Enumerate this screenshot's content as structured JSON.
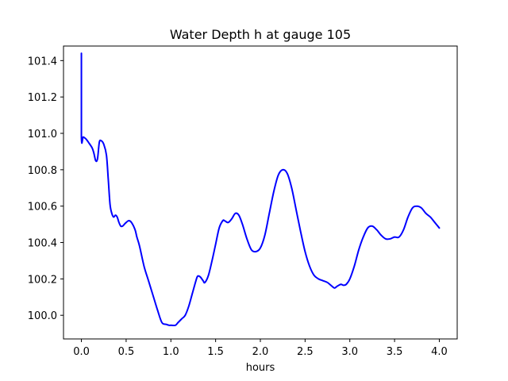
{
  "chart_data": {
    "type": "line",
    "title": "Water Depth h at gauge 105",
    "xlabel": "hours",
    "ylabel": "",
    "xlim": [
      -0.2,
      4.2
    ],
    "ylim": [
      99.87,
      101.48
    ],
    "xticks": [
      0.0,
      0.5,
      1.0,
      1.5,
      2.0,
      2.5,
      3.0,
      3.5,
      4.0
    ],
    "xtick_labels": [
      "0.0",
      "0.5",
      "1.0",
      "1.5",
      "2.0",
      "2.5",
      "3.0",
      "3.5",
      "4.0"
    ],
    "yticks": [
      100.0,
      100.2,
      100.4,
      100.6,
      100.8,
      101.0,
      101.2,
      101.4
    ],
    "ytick_labels": [
      "100.0",
      "100.2",
      "100.4",
      "100.6",
      "100.8",
      "101.0",
      "101.2",
      "101.4"
    ],
    "grid": false,
    "legend": "none",
    "series": [
      {
        "color": "#0000ff",
        "x": [
          0.0,
          0.0,
          0.02,
          0.05,
          0.08,
          0.12,
          0.14,
          0.16,
          0.18,
          0.2,
          0.22,
          0.25,
          0.28,
          0.3,
          0.32,
          0.34,
          0.36,
          0.38,
          0.4,
          0.42,
          0.44,
          0.46,
          0.48,
          0.5,
          0.53,
          0.56,
          0.6,
          0.62,
          0.65,
          0.7,
          0.75,
          0.8,
          0.85,
          0.9,
          0.95,
          0.98,
          1.0,
          1.05,
          1.08,
          1.12,
          1.16,
          1.2,
          1.24,
          1.28,
          1.3,
          1.33,
          1.36,
          1.38,
          1.42,
          1.46,
          1.5,
          1.54,
          1.58,
          1.6,
          1.64,
          1.68,
          1.72,
          1.76,
          1.8,
          1.85,
          1.9,
          1.95,
          2.0,
          2.05,
          2.1,
          2.15,
          2.2,
          2.25,
          2.3,
          2.35,
          2.4,
          2.45,
          2.5,
          2.55,
          2.6,
          2.65,
          2.7,
          2.75,
          2.8,
          2.83,
          2.86,
          2.9,
          2.93,
          2.96,
          3.0,
          3.05,
          3.1,
          3.15,
          3.2,
          3.25,
          3.3,
          3.35,
          3.4,
          3.45,
          3.5,
          3.55,
          3.6,
          3.65,
          3.7,
          3.75,
          3.8,
          3.85,
          3.9,
          3.95,
          4.0
        ],
        "y": [
          101.44,
          100.98,
          100.98,
          100.97,
          100.95,
          100.92,
          100.89,
          100.85,
          100.86,
          100.95,
          100.96,
          100.94,
          100.88,
          100.75,
          100.61,
          100.56,
          100.54,
          100.55,
          100.54,
          100.51,
          100.49,
          100.49,
          100.5,
          100.51,
          100.52,
          100.51,
          100.47,
          100.43,
          100.38,
          100.27,
          100.19,
          100.11,
          100.03,
          99.96,
          99.95,
          99.945,
          99.945,
          99.945,
          99.96,
          99.98,
          100.0,
          100.05,
          100.12,
          100.19,
          100.215,
          100.21,
          100.19,
          100.18,
          100.22,
          100.3,
          100.39,
          100.48,
          100.52,
          100.52,
          100.51,
          100.53,
          100.56,
          100.55,
          100.5,
          100.42,
          100.36,
          100.35,
          100.37,
          100.44,
          100.56,
          100.68,
          100.77,
          100.8,
          100.78,
          100.7,
          100.58,
          100.46,
          100.35,
          100.27,
          100.22,
          100.2,
          100.19,
          100.18,
          100.16,
          100.15,
          100.16,
          100.17,
          100.165,
          100.17,
          100.2,
          100.27,
          100.36,
          100.43,
          100.48,
          100.49,
          100.47,
          100.44,
          100.42,
          100.42,
          100.43,
          100.43,
          100.47,
          100.54,
          100.59,
          100.6,
          100.59,
          100.56,
          100.54,
          100.51,
          100.48
        ]
      }
    ]
  }
}
